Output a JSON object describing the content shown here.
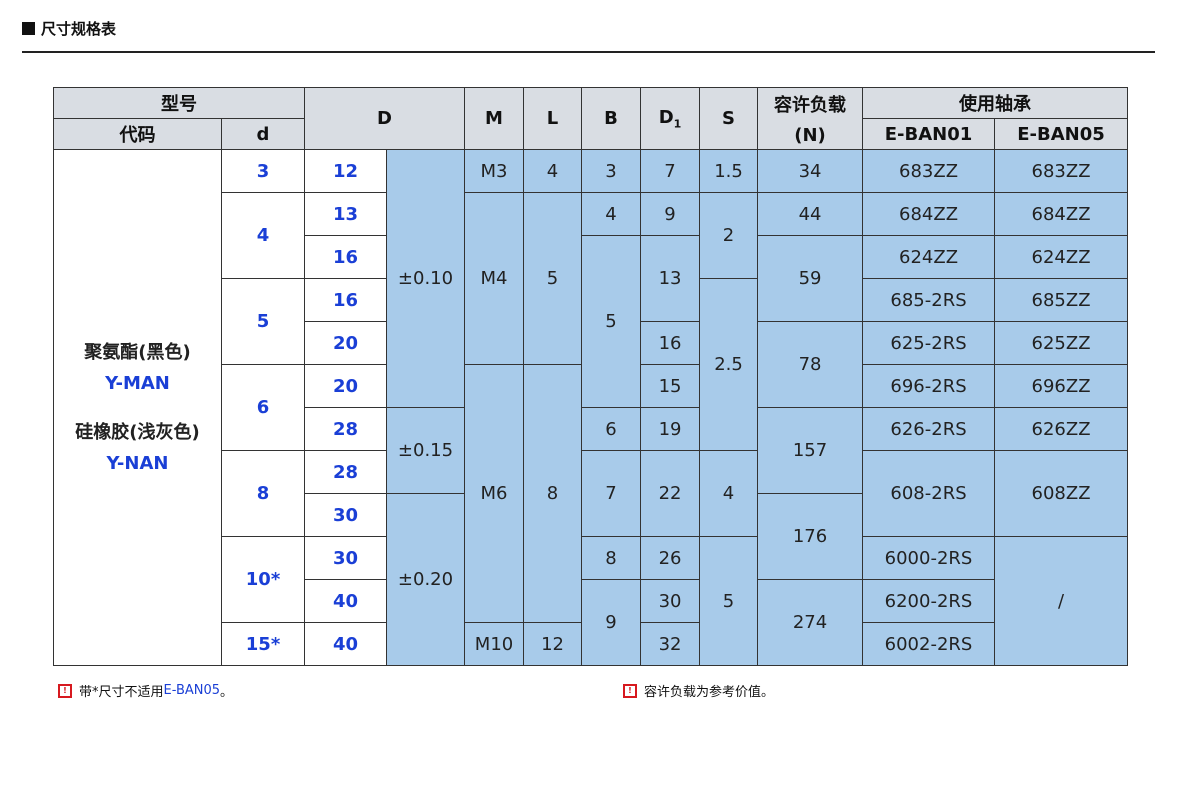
{
  "title": "尺寸规格表",
  "header": {
    "model": "型号",
    "code": "代码",
    "d": "d",
    "D": "D",
    "M": "M",
    "L": "L",
    "B": "B",
    "D1": "D",
    "D1_sub": "1",
    "S": "S",
    "load": "容许负载",
    "load_unit": "(N)",
    "bearing": "使用轴承",
    "ban01": "E-BAN01",
    "ban05": "E-BAN05"
  },
  "code": {
    "mat1": "聚氨酯(黑色)",
    "code1": "Y-MAN",
    "mat2": "硅橡胶(浅灰色)",
    "code2": "Y-NAN"
  },
  "cols": {
    "d": [
      "3",
      "4",
      "5",
      "6",
      "8",
      "10*",
      "15*"
    ],
    "D": [
      "12",
      "13",
      "16",
      "16",
      "20",
      "20",
      "28",
      "28",
      "30",
      "30",
      "40",
      "40"
    ],
    "tol": [
      "±0.10",
      "±0.15",
      "±0.20"
    ],
    "M": [
      "M3",
      "M4",
      "M6",
      "M10"
    ],
    "L": [
      "4",
      "5",
      "8",
      "12"
    ],
    "B": [
      "3",
      "4",
      "5",
      "6",
      "7",
      "8",
      "9"
    ],
    "D1": [
      "7",
      "9",
      "13",
      "16",
      "15",
      "19",
      "22",
      "26",
      "30",
      "32"
    ],
    "S": [
      "1.5",
      "2",
      "2.5",
      "4",
      "5"
    ],
    "N": [
      "34",
      "44",
      "59",
      "78",
      "157",
      "176",
      "274"
    ],
    "ban01": [
      "683ZZ",
      "684ZZ",
      "624ZZ",
      "685-2RS",
      "625-2RS",
      "696-2RS",
      "626-2RS",
      "608-2RS",
      "6000-2RS",
      "6200-2RS",
      "6002-2RS"
    ],
    "ban05": [
      "683ZZ",
      "684ZZ",
      "624ZZ",
      "685ZZ",
      "625ZZ",
      "696ZZ",
      "626ZZ",
      "608ZZ",
      "/"
    ]
  },
  "notes": {
    "n1a": "带*尺寸不适用 ",
    "n1b": "E-BAN05",
    "n1c": "。",
    "n2": "容许负载为参考价值。"
  },
  "colors": {
    "header_bg": "#d9dde3",
    "cell_blue": "#a8cbea",
    "text_blue": "#1a3fd6",
    "text_red": "#e8141b"
  }
}
